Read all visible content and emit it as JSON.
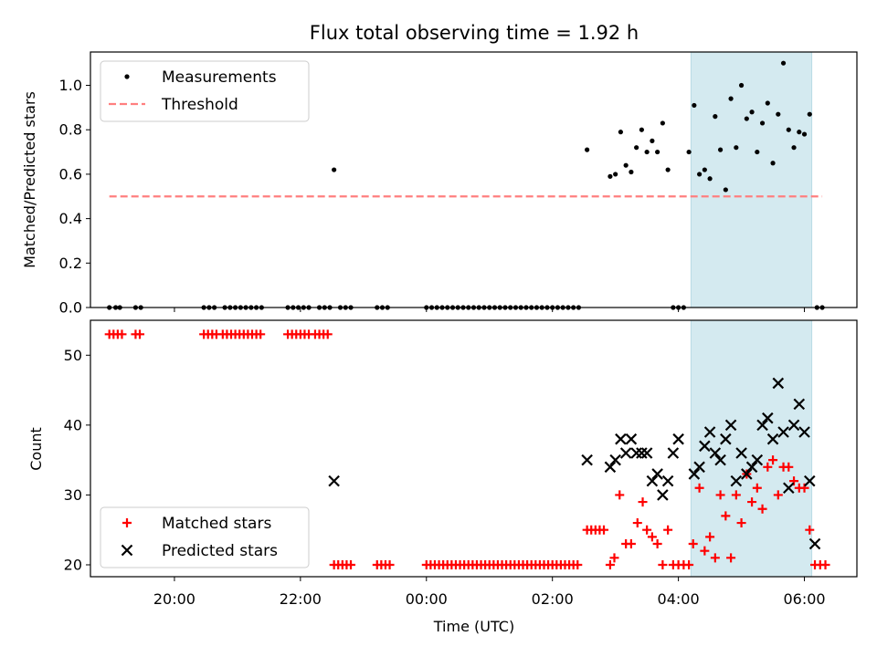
{
  "figure": {
    "title": "Flux total observing time = 1.92 h",
    "xlabel": "Time (UTC)"
  },
  "chart_data": [
    {
      "type": "scatter",
      "ylabel": "Matched/Predicted stars",
      "xlim": [
        "18:40",
        "06:50"
      ],
      "ylim": [
        0,
        1.15
      ],
      "yticks": [
        "0.0",
        "0.2",
        "0.4",
        "0.6",
        "0.8",
        "1.0"
      ],
      "xticks": [
        "20:00",
        "22:00",
        "00:00",
        "02:00",
        "04:00",
        "06:00"
      ],
      "show_xtick_labels": false,
      "highlight_span": {
        "x_start": "04:12",
        "x_end": "06:07",
        "color": "#d4eaf0"
      },
      "legend": {
        "placement": "top-left",
        "entries": [
          "Measurements",
          "Threshold"
        ]
      },
      "series": [
        {
          "name": "Measurements",
          "marker": "dot",
          "color": "#000000",
          "x": [
            "18:58",
            "19:04",
            "19:08",
            "19:23",
            "19:28",
            "20:28",
            "20:33",
            "20:38",
            "20:48",
            "20:53",
            "20:58",
            "21:03",
            "21:08",
            "21:13",
            "21:18",
            "21:23",
            "21:48",
            "21:53",
            "21:58",
            "22:03",
            "22:08",
            "22:18",
            "22:23",
            "22:28",
            "22:32",
            "22:38",
            "22:43",
            "22:48",
            "23:13",
            "23:18",
            "23:23",
            "00:00",
            "00:05",
            "00:10",
            "00:15",
            "00:20",
            "00:25",
            "00:30",
            "00:35",
            "00:40",
            "00:45",
            "00:50",
            "00:55",
            "01:00",
            "01:05",
            "01:10",
            "01:15",
            "01:20",
            "01:25",
            "01:30",
            "01:35",
            "01:40",
            "01:45",
            "01:50",
            "01:55",
            "02:00",
            "02:05",
            "02:10",
            "02:15",
            "02:20",
            "02:25",
            "02:33",
            "02:55",
            "03:00",
            "03:05",
            "03:10",
            "03:15",
            "03:20",
            "03:25",
            "03:30",
            "03:35",
            "03:40",
            "03:45",
            "03:50",
            "03:55",
            "04:00",
            "04:05",
            "04:10",
            "04:15",
            "04:20",
            "04:25",
            "04:30",
            "04:35",
            "04:40",
            "04:45",
            "04:50",
            "04:55",
            "05:00",
            "05:05",
            "05:10",
            "05:15",
            "05:20",
            "05:25",
            "05:30",
            "05:35",
            "05:40",
            "05:45",
            "05:50",
            "05:55",
            "06:00",
            "06:05",
            "06:12",
            "06:17"
          ],
          "y": [
            0,
            0,
            0,
            0,
            0,
            0,
            0,
            0,
            0,
            0,
            0,
            0,
            0,
            0,
            0,
            0,
            0,
            0,
            0,
            0,
            0,
            0,
            0,
            0,
            0.62,
            0,
            0,
            0,
            0,
            0,
            0,
            0,
            0,
            0,
            0,
            0,
            0,
            0,
            0,
            0,
            0,
            0,
            0,
            0,
            0,
            0,
            0,
            0,
            0,
            0,
            0,
            0,
            0,
            0,
            0,
            0,
            0,
            0,
            0,
            0,
            0,
            0.71,
            0.59,
            0.6,
            0.79,
            0.64,
            0.61,
            0.72,
            0.8,
            0.7,
            0.75,
            0.7,
            0.83,
            0.62,
            0,
            0,
            0,
            0.7,
            0.91,
            0.6,
            0.62,
            0.58,
            0.86,
            0.71,
            0.53,
            0.94,
            0.72,
            1.0,
            0.85,
            0.88,
            0.7,
            0.83,
            0.92,
            0.65,
            0.87,
            1.1,
            0.8,
            0.72,
            0.79,
            0.78,
            0.87,
            0,
            0
          ]
        },
        {
          "name": "Threshold",
          "type": "line",
          "style": "dashed",
          "color": "#ff7f7f",
          "x": [
            "18:58",
            "06:17"
          ],
          "y": [
            0.5,
            0.5
          ]
        }
      ]
    },
    {
      "type": "scatter",
      "ylabel": "Count",
      "xlim": [
        "18:40",
        "06:50"
      ],
      "ylim": [
        18.3,
        55
      ],
      "yticks": [
        "20",
        "30",
        "40",
        "50"
      ],
      "xticks": [
        "20:00",
        "22:00",
        "00:00",
        "02:00",
        "04:00",
        "06:00"
      ],
      "show_xtick_labels": true,
      "highlight_span": {
        "x_start": "04:12",
        "x_end": "06:07",
        "color": "#d4eaf0"
      },
      "legend": {
        "placement": "bottom-left",
        "entries": [
          "Matched stars",
          "Predicted stars"
        ]
      },
      "series": [
        {
          "name": "Matched stars",
          "marker": "plus",
          "color": "#ff0000",
          "x": [
            "18:58",
            "19:02",
            "19:06",
            "19:10",
            "19:23",
            "19:27",
            "20:28",
            "20:32",
            "20:36",
            "20:40",
            "20:46",
            "20:50",
            "20:54",
            "20:58",
            "21:02",
            "21:06",
            "21:10",
            "21:14",
            "21:18",
            "21:22",
            "21:48",
            "21:52",
            "21:56",
            "22:00",
            "22:04",
            "22:08",
            "22:14",
            "22:18",
            "22:22",
            "22:26",
            "22:32",
            "22:36",
            "22:40",
            "22:44",
            "22:48",
            "23:13",
            "23:17",
            "23:21",
            "23:25",
            "00:00",
            "00:04",
            "00:08",
            "00:12",
            "00:16",
            "00:20",
            "00:24",
            "00:28",
            "00:32",
            "00:36",
            "00:40",
            "00:44",
            "00:48",
            "00:52",
            "00:56",
            "01:00",
            "01:04",
            "01:08",
            "01:12",
            "01:16",
            "01:20",
            "01:24",
            "01:28",
            "01:32",
            "01:36",
            "01:40",
            "01:44",
            "01:48",
            "01:52",
            "01:56",
            "02:00",
            "02:04",
            "02:08",
            "02:12",
            "02:16",
            "02:20",
            "02:24",
            "02:33",
            "02:37",
            "02:41",
            "02:45",
            "02:49",
            "02:55",
            "02:59",
            "03:04",
            "03:10",
            "03:15",
            "03:21",
            "03:26",
            "03:30",
            "03:35",
            "03:40",
            "03:45",
            "03:50",
            "03:55",
            "04:00",
            "04:05",
            "04:10",
            "04:14",
            "04:20",
            "04:25",
            "04:30",
            "04:35",
            "04:40",
            "04:45",
            "04:50",
            "04:55",
            "05:00",
            "05:05",
            "05:10",
            "05:15",
            "05:20",
            "05:25",
            "05:30",
            "05:35",
            "05:40",
            "05:45",
            "05:50",
            "05:55",
            "06:00",
            "06:05",
            "06:10",
            "06:15",
            "06:20"
          ],
          "y": [
            53,
            53,
            53,
            53,
            53,
            53,
            53,
            53,
            53,
            53,
            53,
            53,
            53,
            53,
            53,
            53,
            53,
            53,
            53,
            53,
            53,
            53,
            53,
            53,
            53,
            53,
            53,
            53,
            53,
            53,
            20,
            20,
            20,
            20,
            20,
            20,
            20,
            20,
            20,
            20,
            20,
            20,
            20,
            20,
            20,
            20,
            20,
            20,
            20,
            20,
            20,
            20,
            20,
            20,
            20,
            20,
            20,
            20,
            20,
            20,
            20,
            20,
            20,
            20,
            20,
            20,
            20,
            20,
            20,
            20,
            20,
            20,
            20,
            20,
            20,
            20,
            25,
            25,
            25,
            25,
            25,
            20,
            21,
            30,
            23,
            23,
            26,
            29,
            25,
            24,
            23,
            20,
            25,
            20,
            20,
            20,
            20,
            23,
            31,
            22,
            24,
            21,
            30,
            27,
            21,
            30,
            26,
            33,
            29,
            31,
            28,
            34,
            35,
            30,
            34,
            34,
            32,
            31,
            31,
            25,
            20,
            20,
            20
          ]
        },
        {
          "name": "Predicted stars",
          "marker": "x",
          "color": "#000000",
          "x": [
            "22:32",
            "02:33",
            "02:55",
            "03:00",
            "03:05",
            "03:10",
            "03:15",
            "03:20",
            "03:25",
            "03:30",
            "03:35",
            "03:40",
            "03:45",
            "03:50",
            "03:55",
            "04:00",
            "04:15",
            "04:20",
            "04:25",
            "04:30",
            "04:35",
            "04:40",
            "04:45",
            "04:50",
            "04:55",
            "05:00",
            "05:05",
            "05:10",
            "05:15",
            "05:20",
            "05:25",
            "05:30",
            "05:35",
            "05:40",
            "05:45",
            "05:50",
            "05:55",
            "06:00",
            "06:05",
            "06:10"
          ],
          "y": [
            32,
            35,
            34,
            35,
            38,
            36,
            38,
            36,
            36,
            36,
            32,
            33,
            30,
            32,
            36,
            38,
            33,
            34,
            37,
            39,
            36,
            35,
            38,
            40,
            32,
            36,
            33,
            34,
            35,
            40,
            41,
            38,
            46,
            39,
            31,
            40,
            43,
            39,
            32,
            23
          ]
        }
      ]
    }
  ]
}
